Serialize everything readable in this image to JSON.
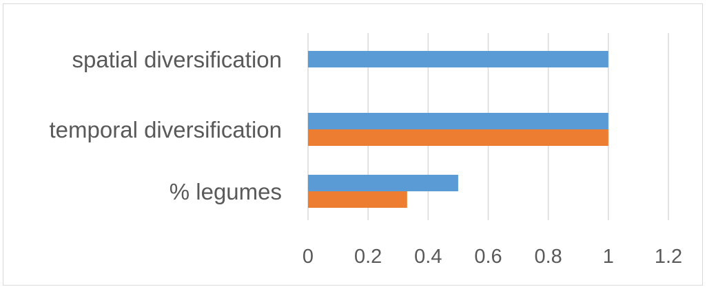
{
  "chart_data": {
    "type": "bar",
    "orientation": "horizontal",
    "categories": [
      "spatial diversification",
      "temporal diversification",
      "% legumes"
    ],
    "series": [
      {
        "values": [
          1,
          1,
          0.5
        ],
        "color": "#5b9bd5"
      },
      {
        "values": [
          null,
          1,
          0.33
        ],
        "color": "#ed7d31"
      }
    ],
    "xlim": [
      0,
      1.2
    ],
    "xticks": [
      "0",
      "0.2",
      "0.4",
      "0.6",
      "0.8",
      "1",
      "1.2"
    ],
    "title": "",
    "xlabel": "",
    "ylabel": "",
    "grid": "vertical",
    "legend": "none"
  }
}
